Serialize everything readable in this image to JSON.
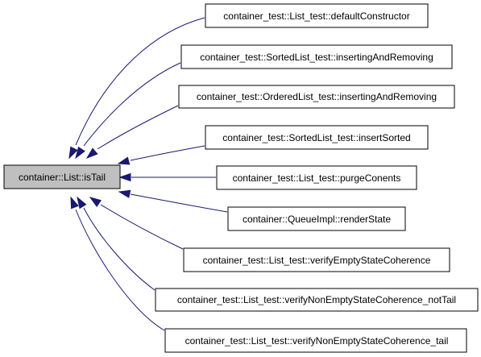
{
  "focus": {
    "label": "container::List::isTail"
  },
  "callers": [
    {
      "label": "container_test::List_test::defaultConstructor"
    },
    {
      "label": "container_test::SortedList_test::insertingAndRemoving"
    },
    {
      "label": "container_test::OrderedList_test::insertingAndRemoving"
    },
    {
      "label": "container_test::SortedList_test::insertSorted"
    },
    {
      "label": "container_test::List_test::purgeConents"
    },
    {
      "label": "container::QueueImpl::renderState"
    },
    {
      "label": "container_test::List_test::verifyEmptyStateCoherence"
    },
    {
      "label": "container_test::List_test::verifyNonEmptyStateCoherence_notTail"
    },
    {
      "label": "container_test::List_test::verifyNonEmptyStateCoherence_tail"
    }
  ],
  "colors": {
    "edge": "#191970",
    "focus_fill": "#bfbfbf",
    "node_fill": "#ffffff",
    "border": "#000000"
  }
}
